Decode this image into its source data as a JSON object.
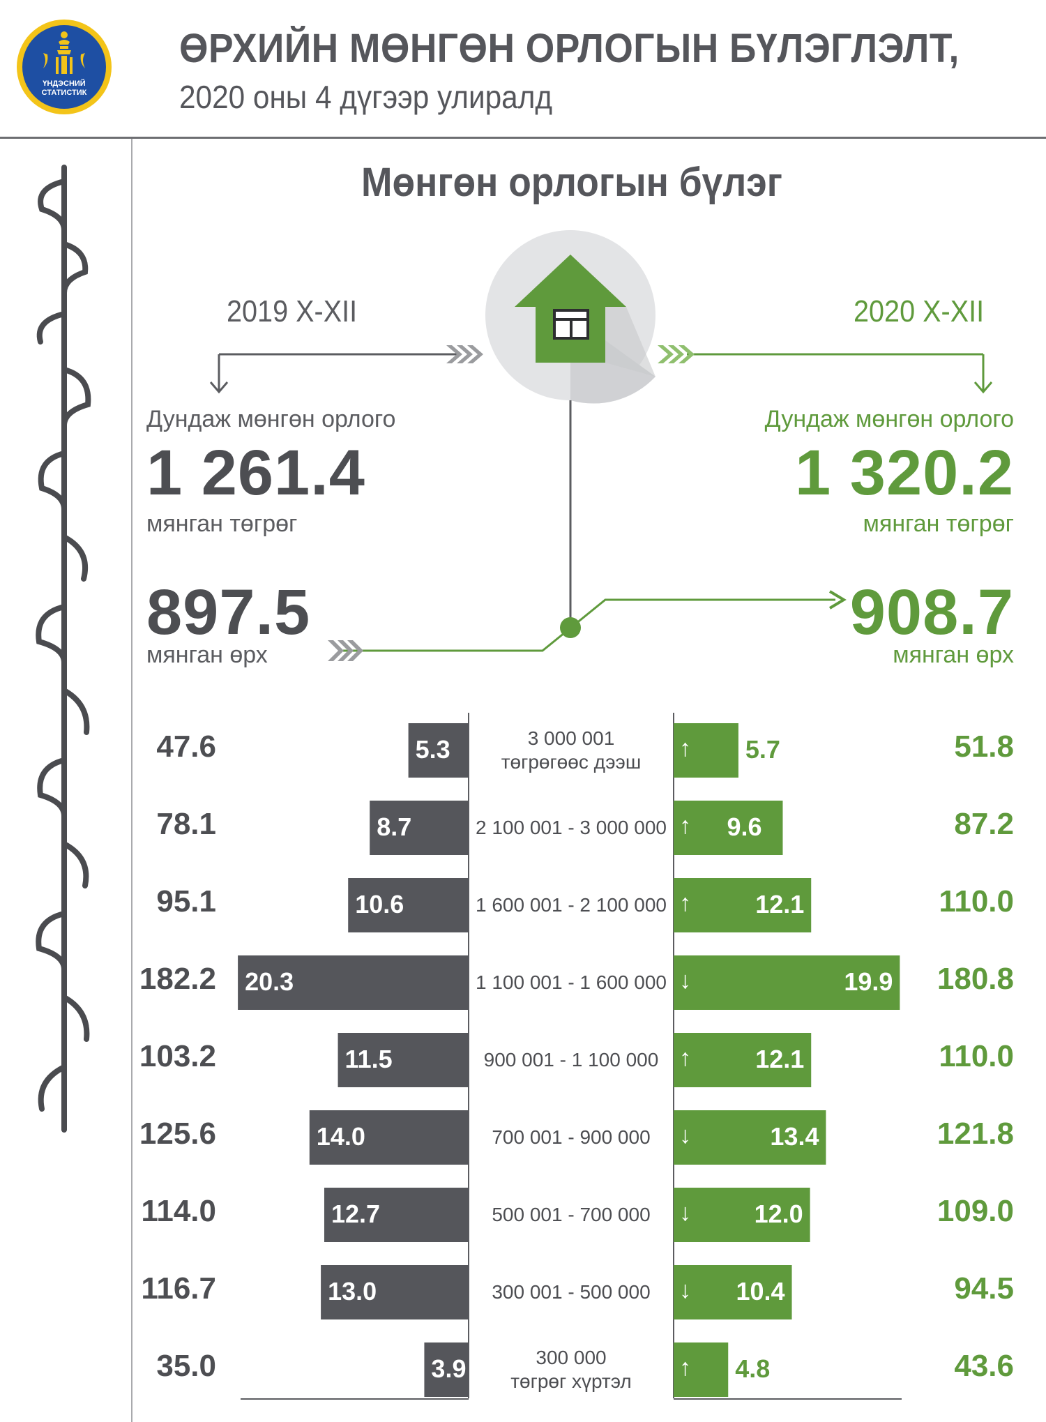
{
  "header": {
    "title": "ӨРХИЙН МӨНГӨН ОРЛОГЫН БҮЛЭГЛЭЛТ,",
    "subtitle": "2020 оны 4 дүгээр улиралд",
    "logo_text": "ҮНДЭСНИЙ СТАТИСТИК"
  },
  "section": {
    "title": "Мөнгөн орлогын бүлэг"
  },
  "left": {
    "year": "2019 X-XII",
    "avg_label": "Дундаж мөнгөн орлого",
    "avg_value": "1 261.4",
    "avg_unit": "мянган төгрөг",
    "households_value": "897.5",
    "households_unit": "мянган өрх"
  },
  "right": {
    "year": "2020 X-XII",
    "avg_label": "Дундаж мөнгөн орлого",
    "avg_value": "1 320.2",
    "avg_unit": "мянган төгрөг",
    "households_value": "908.7",
    "households_unit": "мянган өрх"
  },
  "colors": {
    "gray": "#55565b",
    "green": "#5f9a3c",
    "light_gray": "#e3e4e6"
  },
  "icons": {
    "center": "house-icon"
  },
  "chart_data": {
    "type": "bar",
    "orientation": "horizontal-butterfly",
    "categories": [
      [
        "3 000 001",
        "төгрөгөөс дээш"
      ],
      [
        "2 100 001 - 3 000 000"
      ],
      [
        "1 600 001 - 2 100 000"
      ],
      [
        "1 100 001 - 1 600 000"
      ],
      [
        "900 001 - 1 100 000"
      ],
      [
        "700 001 - 900 000"
      ],
      [
        "500 001 - 700 000"
      ],
      [
        "300 001 - 500 000"
      ],
      [
        "300 000",
        "төгрөг хүртэл"
      ]
    ],
    "series": [
      {
        "name": "2019 X-XII",
        "values": [
          5.3,
          8.7,
          10.6,
          20.3,
          11.5,
          14.0,
          12.7,
          13.0,
          3.9
        ],
        "labels": [
          "5.3",
          "8.7",
          "10.6",
          "20.3",
          "11.5",
          "14.0",
          "12.7",
          "13.0",
          "3.9"
        ],
        "counts": [
          "47.6",
          "78.1",
          "95.1",
          "182.2",
          "103.2",
          "125.6",
          "114.0",
          "116.7",
          "35.0"
        ]
      },
      {
        "name": "2020 X-XII",
        "values": [
          5.7,
          9.6,
          12.1,
          19.9,
          12.1,
          13.4,
          12.0,
          10.4,
          4.8
        ],
        "labels": [
          "5.7",
          "9.6",
          "12.1",
          "19.9",
          "12.1",
          "13.4",
          "12.0",
          "10.4",
          "4.8"
        ],
        "counts": [
          "51.8",
          "87.2",
          "110.0",
          "180.8",
          "110.0",
          "121.8",
          "109.0",
          "94.5",
          "43.6"
        ],
        "change": [
          "up",
          "up",
          "up",
          "down",
          "up",
          "down",
          "down",
          "down",
          "up"
        ]
      }
    ]
  }
}
